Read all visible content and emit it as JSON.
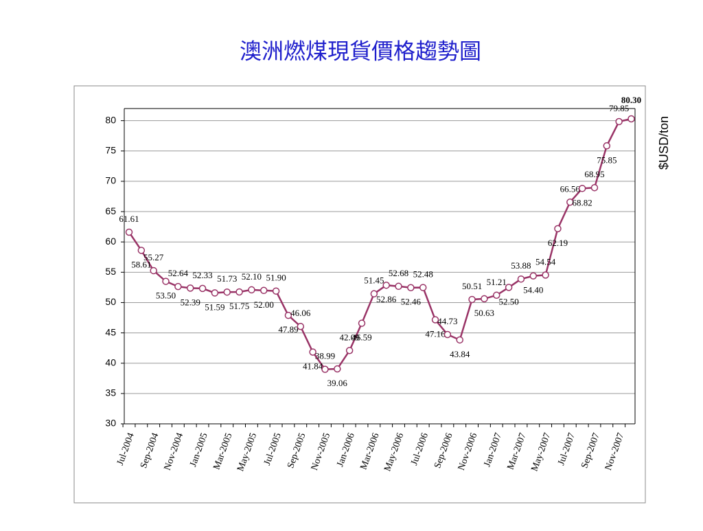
{
  "chart_data": {
    "type": "line",
    "title": "澳洲燃煤現貨價格趨勢圖",
    "y_label": "$USD/ton",
    "categories": [
      "Jul-2004",
      null,
      "Sep-2004",
      null,
      "Nov-2004",
      null,
      "Jan-2005",
      null,
      "Mar-2005",
      null,
      "May-2005",
      null,
      "Jul-2005",
      null,
      "Sep-2005",
      null,
      "Nov-2005",
      null,
      "Jan-2006",
      null,
      "Mar-2006",
      null,
      "May-2006",
      null,
      "Jul-2006",
      null,
      "Sep-2006",
      null,
      "Nov-2006",
      null,
      "Jan-2007",
      null,
      "Mar-2007",
      null,
      "May-2007",
      null,
      "Jul-2007",
      null,
      "Sep-2007",
      null,
      "Nov-2007",
      null
    ],
    "series": [
      {
        "color": "#993366",
        "values": [
          61.61,
          58.61,
          55.27,
          53.5,
          52.64,
          52.39,
          52.33,
          51.59,
          51.73,
          51.75,
          52.1,
          52,
          51.9,
          47.89,
          46.06,
          41.84,
          38.99,
          39.06,
          42.09,
          46.59,
          51.45,
          52.86,
          52.68,
          52.46,
          52.48,
          47.16,
          44.73,
          43.84,
          50.51,
          50.63,
          51.21,
          52.5,
          53.88,
          54.4,
          54.54,
          62.19,
          66.56,
          68.82,
          68.95,
          75.85,
          79.85,
          80.3
        ],
        "value_labels": [
          "61.61",
          "58.61",
          "55.27",
          "53.50",
          "52.64",
          "52.39",
          "52.33",
          "51.59",
          "51.73",
          "51.75",
          "52.10",
          "52.00",
          "51.90",
          "47.89",
          "46.06",
          "41.84",
          "38.99",
          "39.06",
          "42.09",
          "46.59",
          "51.45",
          "52.86",
          "52.68",
          "52.46",
          "52.48",
          "47.16",
          "44.73",
          "43.84",
          "50.51",
          "50.63",
          "51.21",
          "52.50",
          "53.88",
          "54.40",
          "54.54",
          "62.19",
          "66.56",
          "68.82",
          "68.95",
          "75.85",
          "79.85",
          "80.30"
        ]
      }
    ],
    "ylim": [
      30,
      82
    ],
    "yticks": [
      30,
      35,
      40,
      45,
      50,
      55,
      60,
      65,
      70,
      75,
      80
    ],
    "grid": true
  }
}
